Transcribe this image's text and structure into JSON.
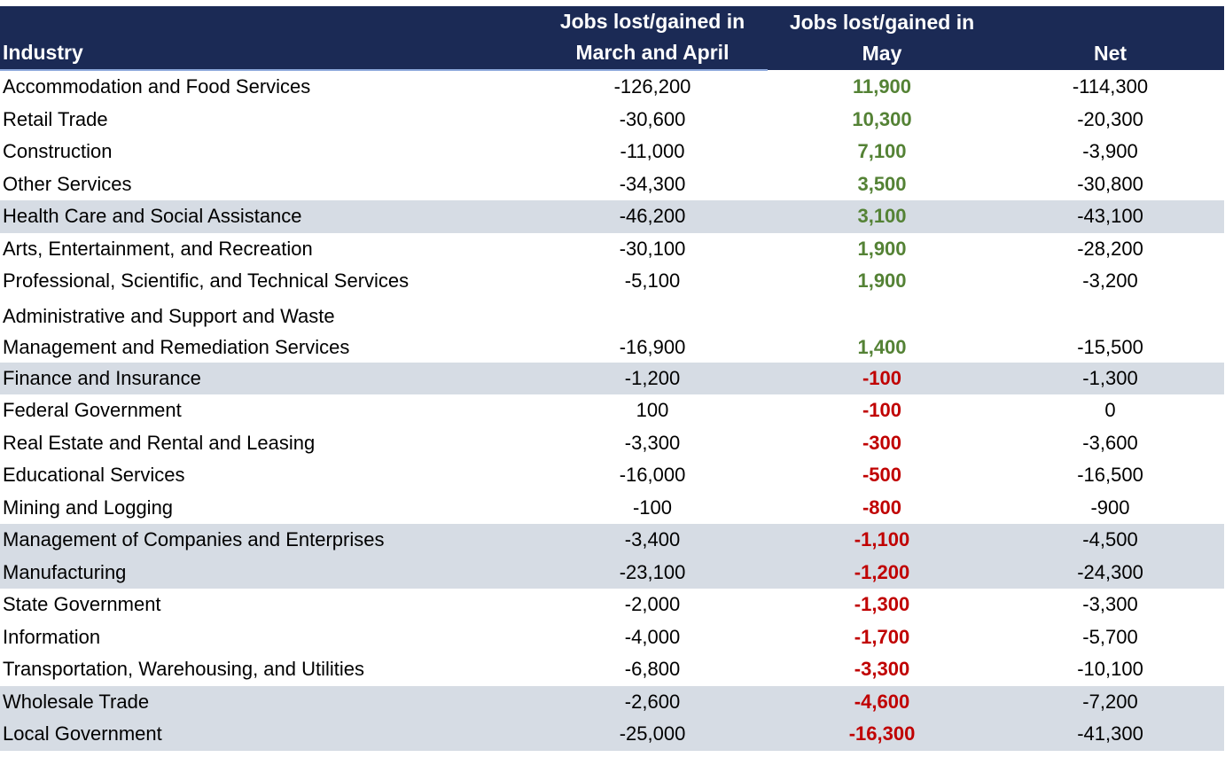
{
  "header": {
    "industry": "Industry",
    "march_april_line1": "Jobs lost/gained in",
    "march_april_line2": "March and April",
    "may_line1": "Jobs lost/gained in",
    "may_line2": "May",
    "net": "Net"
  },
  "colors": {
    "header_bg": "#1b2a55",
    "positive": "#548235",
    "negative": "#c00000",
    "shade": "#d6dce4"
  },
  "rows": [
    {
      "industry": "Accommodation and Food Services",
      "march_april": "-126,200",
      "may": "11,900",
      "net": "-114,300",
      "shaded": false
    },
    {
      "industry": "Retail Trade",
      "march_april": "-30,600",
      "may": "10,300",
      "net": "-20,300",
      "shaded": false
    },
    {
      "industry": "Construction",
      "march_april": "-11,000",
      "may": "7,100",
      "net": "-3,900",
      "shaded": false
    },
    {
      "industry": "Other Services",
      "march_april": "-34,300",
      "may": "3,500",
      "net": "-30,800",
      "shaded": false
    },
    {
      "industry": "Health Care and Social Assistance",
      "march_april": "-46,200",
      "may": "3,100",
      "net": "-43,100",
      "shaded": true
    },
    {
      "industry": "Arts, Entertainment, and Recreation",
      "march_april": "-30,100",
      "may": "1,900",
      "net": "-28,200",
      "shaded": false
    },
    {
      "industry": "Professional, Scientific, and  Technical Services",
      "march_april": "-5,100",
      "may": "1,900",
      "net": "-3,200",
      "shaded": false
    },
    {
      "industry": "Administrative and Support and Waste",
      "industry_line2": "Management and Remediation Services",
      "march_april": "-16,900",
      "may": "1,400",
      "net": "-15,500",
      "shaded": false
    },
    {
      "industry": "Finance and Insurance",
      "march_april": "-1,200",
      "may": "-100",
      "net": "-1,300",
      "shaded": true
    },
    {
      "industry": "Federal Government",
      "march_april": "100",
      "may": "-100",
      "net": "0",
      "shaded": false
    },
    {
      "industry": "Real Estate and Rental and Leasing",
      "march_april": "-3,300",
      "may": "-300",
      "net": "-3,600",
      "shaded": false
    },
    {
      "industry": "Educational Services",
      "march_april": "-16,000",
      "may": "-500",
      "net": "-16,500",
      "shaded": false
    },
    {
      "industry": "Mining and Logging",
      "march_april": "-100",
      "may": "-800",
      "net": "-900",
      "shaded": false
    },
    {
      "industry": "Management of Companies and Enterprises",
      "march_april": "-3,400",
      "may": "-1,100",
      "net": "-4,500",
      "shaded": true
    },
    {
      "industry": "Manufacturing",
      "march_april": "-23,100",
      "may": "-1,200",
      "net": "-24,300",
      "shaded": true
    },
    {
      "industry": "State Government",
      "march_april": "-2,000",
      "may": "-1,300",
      "net": "-3,300",
      "shaded": false
    },
    {
      "industry": "Information",
      "march_april": "-4,000",
      "may": "-1,700",
      "net": "-5,700",
      "shaded": false
    },
    {
      "industry": "Transportation, Warehousing, and Utilities",
      "march_april": "-6,800",
      "may": "-3,300",
      "net": "-10,100",
      "shaded": false
    },
    {
      "industry": "Wholesale Trade",
      "march_april": "-2,600",
      "may": "-4,600",
      "net": "-7,200",
      "shaded": true
    },
    {
      "industry": "Local Government",
      "march_april": "-25,000",
      "may": "-16,300",
      "net": "-41,300",
      "shaded": true
    }
  ]
}
